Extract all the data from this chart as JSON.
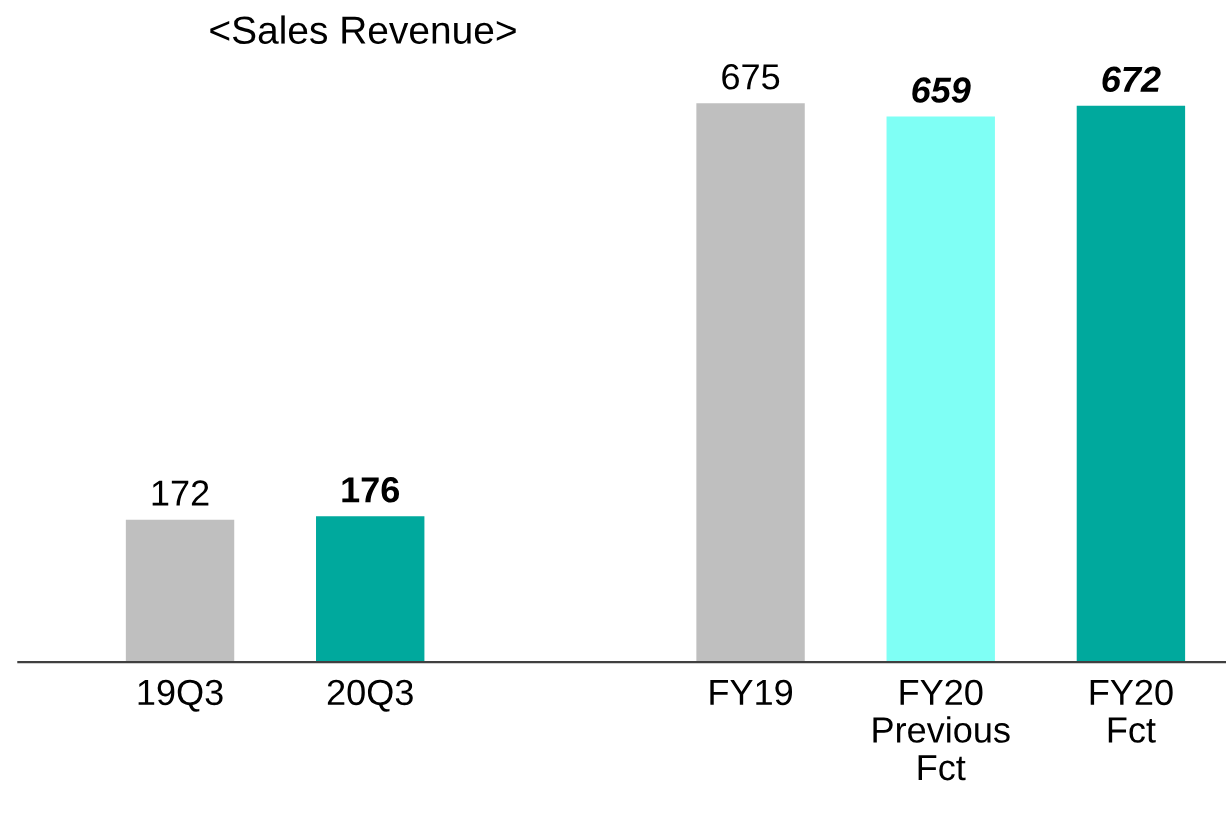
{
  "chart_data": {
    "type": "bar",
    "title": "<Sales Revenue>",
    "categories": [
      "19Q3",
      "20Q3",
      null,
      "FY19",
      "FY20\nPrevious\nFct",
      "FY20\nFct"
    ],
    "values": [
      172,
      176,
      null,
      675,
      659,
      672
    ],
    "colors": [
      "#bfbfbf",
      "#00a99d",
      "#bfbfbf",
      "#bfbfbf",
      "#7ffff5",
      "#00a99d"
    ],
    "data_labels": true,
    "tick_labels": "x",
    "grid": false,
    "legend": false
  }
}
